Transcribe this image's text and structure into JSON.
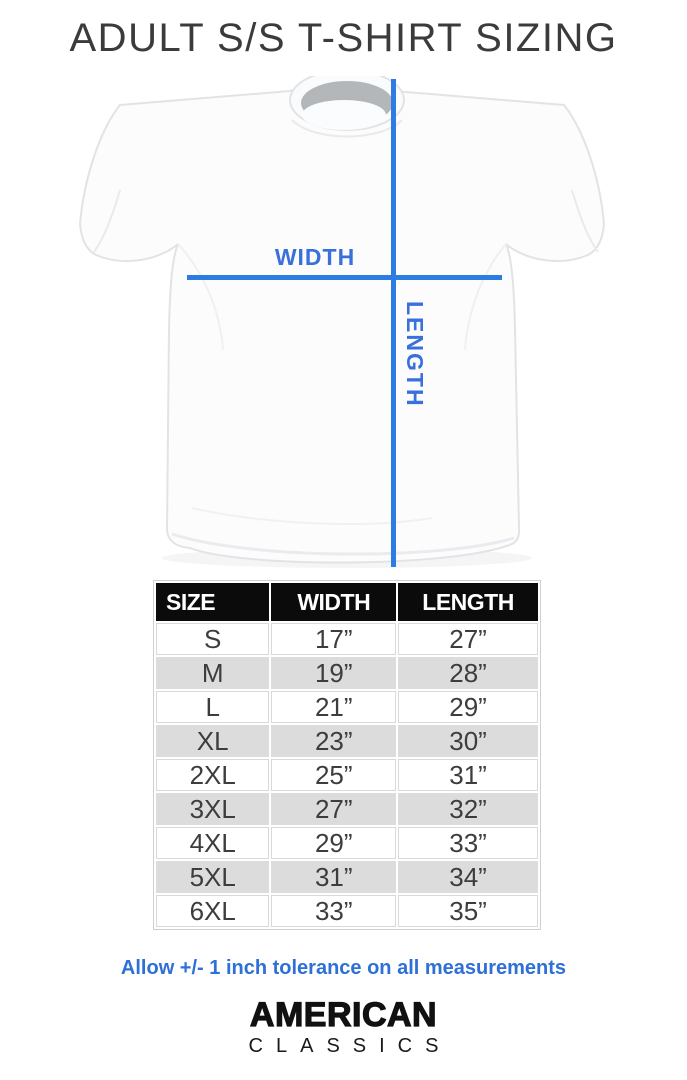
{
  "title": "ADULT S/S T-SHIRT SIZING",
  "diagram": {
    "width_label": "WIDTH",
    "length_label": "LENGTH",
    "shirt": "white short-sleeve t-shirt flat-lay photo"
  },
  "size_table": {
    "headers": [
      "SIZE",
      "WIDTH",
      "LENGTH"
    ],
    "rows": [
      {
        "size": "S",
        "width": "17”",
        "length": "27”"
      },
      {
        "size": "M",
        "width": "19”",
        "length": "28”"
      },
      {
        "size": "L",
        "width": "21”",
        "length": "29”"
      },
      {
        "size": "XL",
        "width": "23”",
        "length": "30”"
      },
      {
        "size": "2XL",
        "width": "25”",
        "length": "31”"
      },
      {
        "size": "3XL",
        "width": "27”",
        "length": "32”"
      },
      {
        "size": "4XL",
        "width": "29”",
        "length": "33”"
      },
      {
        "size": "5XL",
        "width": "31”",
        "length": "34”"
      },
      {
        "size": "6XL",
        "width": "33”",
        "length": "35”"
      }
    ]
  },
  "note": "Allow +/- 1 inch tolerance on all measurements",
  "brand": {
    "line1": "AMERICAN",
    "line2": "CLASSICS"
  },
  "colors": {
    "accent_blue_line": "#2d7be3",
    "label_blue": "#3a70dc",
    "note_blue": "#2e6fd8",
    "header_bg": "#0b0b0b",
    "header_text": "#ffffff",
    "alt_row_gray": "#dcdcdc",
    "cell_text": "#3d3d3d"
  },
  "chart_data": {
    "type": "table",
    "title": "ADULT S/S T-SHIRT SIZING",
    "columns": [
      "SIZE",
      "WIDTH",
      "LENGTH"
    ],
    "rows": [
      [
        "S",
        "17”",
        "27”"
      ],
      [
        "M",
        "19”",
        "28”"
      ],
      [
        "L",
        "21”",
        "29”"
      ],
      [
        "XL",
        "23”",
        "30”"
      ],
      [
        "2XL",
        "25”",
        "31”"
      ],
      [
        "3XL",
        "27”",
        "32”"
      ],
      [
        "4XL",
        "29”",
        "33”"
      ],
      [
        "5XL",
        "31”",
        "34”"
      ],
      [
        "6XL",
        "33”",
        "35”"
      ]
    ],
    "units": "inches",
    "annotations": [
      "WIDTH",
      "LENGTH",
      "Allow +/- 1 inch tolerance on all measurements"
    ]
  }
}
